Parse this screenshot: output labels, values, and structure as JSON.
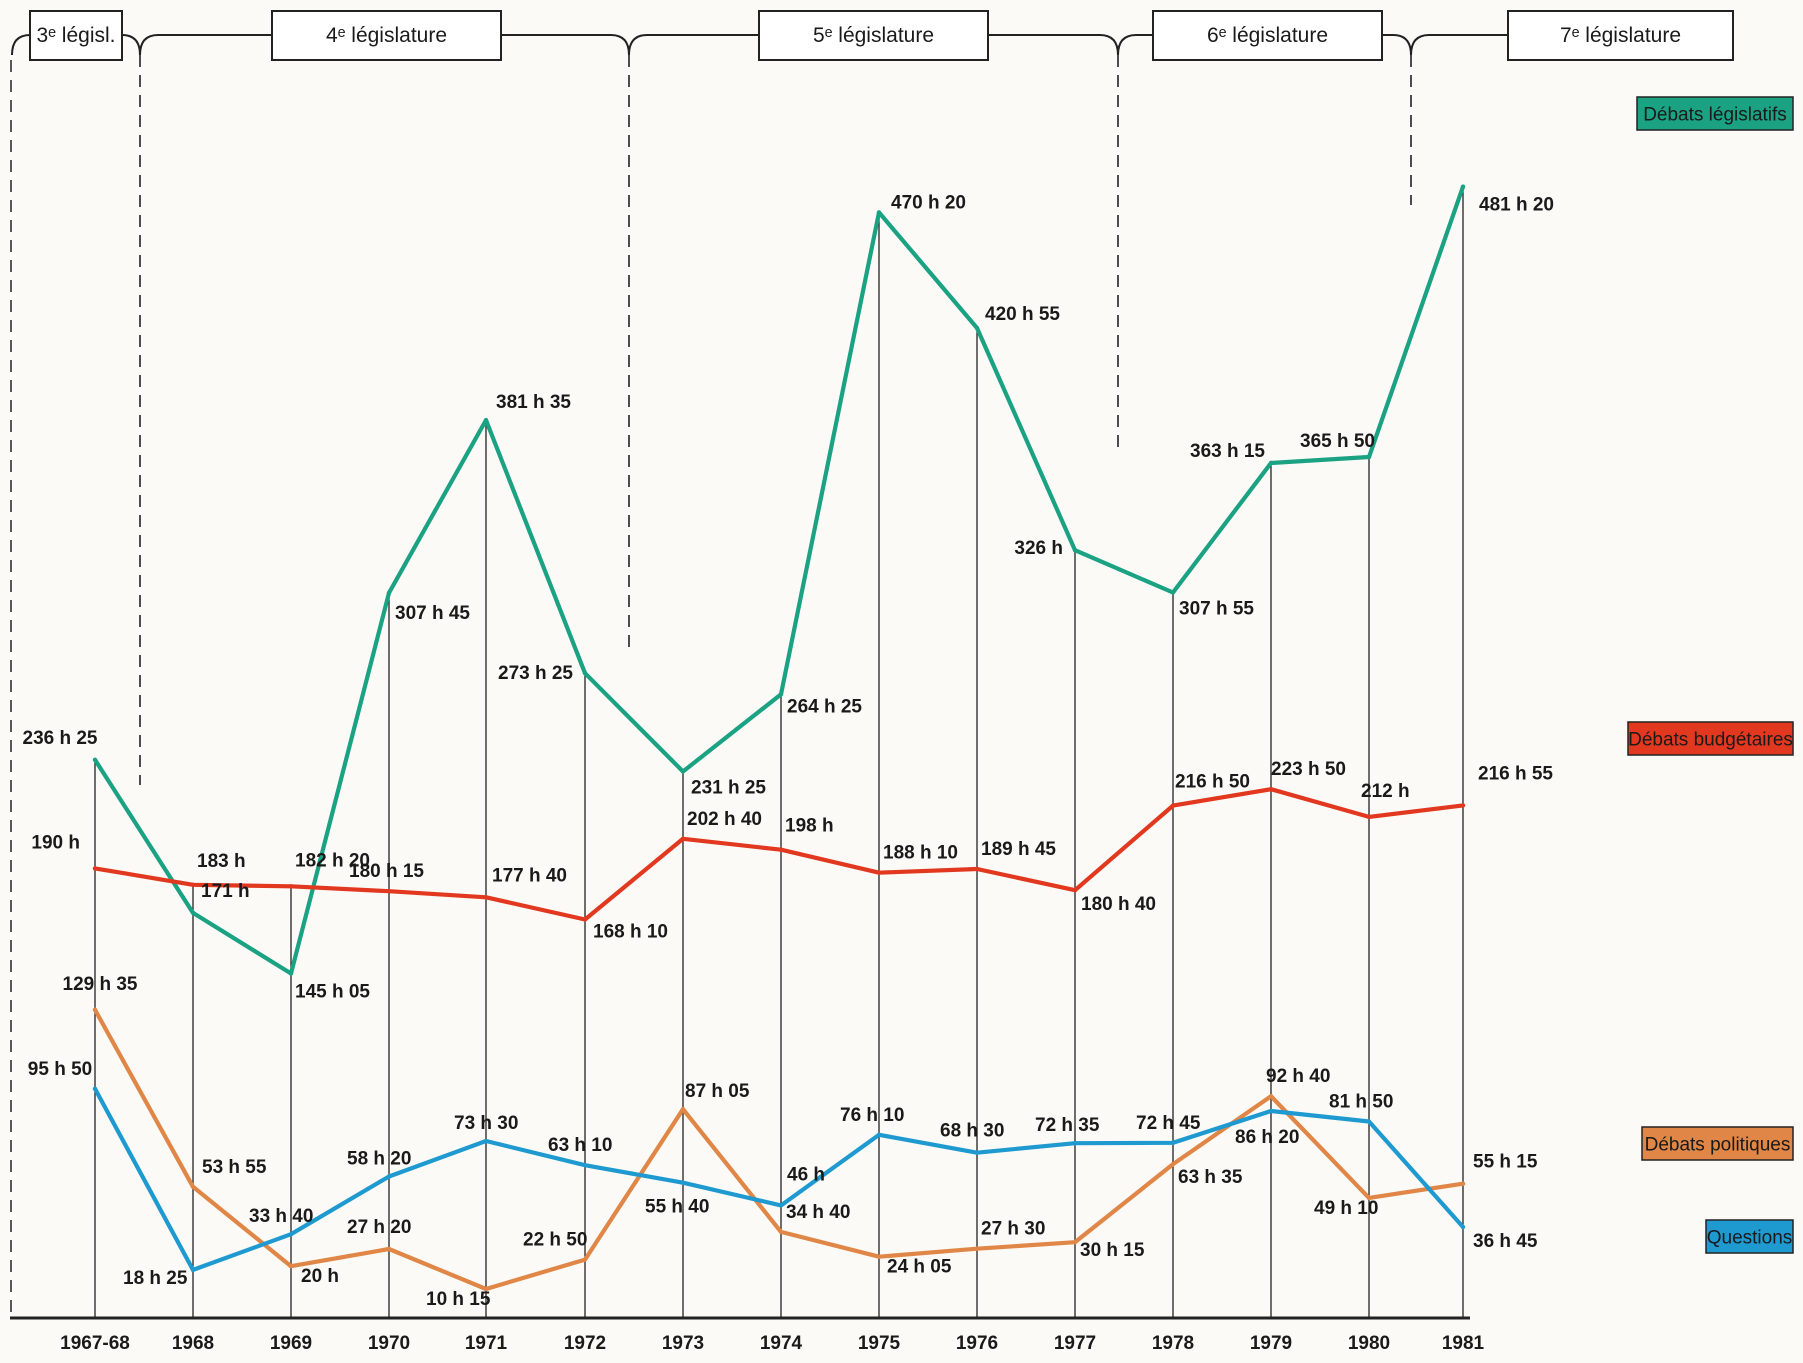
{
  "chart_data": {
    "type": "line",
    "x": [
      "1967-68",
      "1968",
      "1969",
      "1970",
      "1971",
      "1972",
      "1973",
      "1974",
      "1975",
      "1976",
      "1977",
      "1978",
      "1979",
      "1980",
      "1981"
    ],
    "y_unit": "hours",
    "ylim": [
      0,
      500
    ],
    "grid": "vertical lines at each year",
    "legend_position": "right",
    "legislatures": [
      {
        "label": "3ᵉ législ.",
        "from": "1967-68",
        "to": "1968"
      },
      {
        "label": "4ᵉ législature",
        "from": "1968",
        "to": "1973"
      },
      {
        "label": "5ᵉ législature",
        "from": "1973",
        "to": "1978"
      },
      {
        "label": "6ᵉ législature",
        "from": "1978",
        "to": "1981"
      },
      {
        "label": "7ᵉ législature",
        "from": "1981",
        "to": "1981"
      }
    ],
    "series": [
      {
        "name": "Débats législatifs",
        "color": "#1aa283",
        "values": [
          236.42,
          171,
          145.08,
          307.75,
          381.58,
          273.42,
          231.42,
          264.42,
          470.33,
          420.92,
          326,
          307.92,
          363.25,
          365.83,
          481.33
        ],
        "labels": [
          "236 h 25",
          "171 h",
          "145 h 05",
          "307 h 45",
          "381 h 35",
          "273 h 25",
          "231 h 25",
          "264 h 25",
          "470 h 20",
          "420 h 55",
          "326 h",
          "307 h 55",
          "363 h 15",
          "365 h 50",
          "481 h 20"
        ]
      },
      {
        "name": "Débats budgétaires",
        "color": "#e2381f",
        "values": [
          190,
          183,
          182.33,
          180.25,
          177.67,
          168.17,
          202.67,
          198,
          188.17,
          189.75,
          180.67,
          216.83,
          223.83,
          212,
          216.92
        ],
        "labels": [
          "190 h",
          "183 h",
          "182 h 20",
          "180 h 15",
          "177 h 40",
          "168 h 10",
          "202 h 40",
          "198 h",
          "188 h 10",
          "189 h 45",
          "180 h 40",
          "216 h 50",
          "223 h 50",
          "212 h",
          "216 h 55"
        ]
      },
      {
        "name": "Débats politiques",
        "color": "#e08646",
        "values": [
          129.58,
          53.92,
          20,
          27.33,
          10.25,
          22.83,
          87.08,
          34.67,
          24.08,
          27.5,
          30.25,
          63.58,
          92.67,
          49.17,
          55.25
        ],
        "labels": [
          "129 h 35",
          "53 h 55",
          "20 h",
          "27 h 20",
          "10 h 15",
          "22 h 50",
          "87 h 05",
          "34 h 40",
          "24 h 05",
          "27 h 30",
          "30 h 15",
          "63 h 35",
          "92 h 40",
          "49 h 10",
          "55 h 15"
        ]
      },
      {
        "name": "Questions",
        "color": "#1f9ad0",
        "values": [
          95.83,
          18.42,
          33.67,
          58.33,
          73.5,
          63.17,
          55.67,
          46,
          76.17,
          68.5,
          72.58,
          72.75,
          86.33,
          81.83,
          36.75
        ],
        "labels": [
          "95 h 50",
          "18 h 25",
          "33 h 40",
          "58 h 20",
          "73 h 30",
          "63 h 10",
          "55 h 40",
          "46 h",
          "76 h 10",
          "68 h 30",
          "72 h 35",
          "72 h 45",
          "86 h 20",
          "81 h 50",
          "36 h 45"
        ]
      }
    ]
  }
}
